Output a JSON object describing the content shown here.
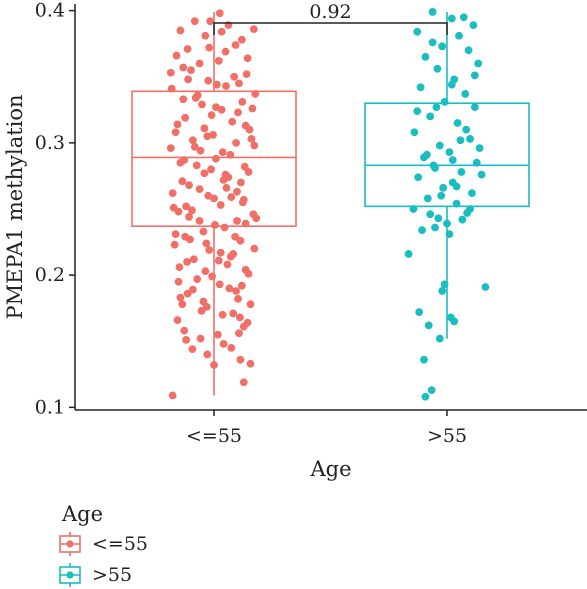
{
  "chart_data": {
    "type": "box",
    "xlabel": "Age",
    "ylabel": "PMEPA1 methylation",
    "ylim": [
      0.098,
      0.405
    ],
    "yticks": [
      0.1,
      0.2,
      0.3,
      0.4
    ],
    "yticklabels": [
      "0.1",
      "0.2",
      "0.3",
      "0.4"
    ],
    "categories": [
      "<=55",
      ">55"
    ],
    "comparison": {
      "label": "0.92",
      "groups": [
        "<=55",
        ">55"
      ]
    },
    "legend": {
      "title": "Age",
      "position": "bottom-left",
      "entries": [
        "<=55",
        ">55"
      ]
    },
    "series": [
      {
        "name": "<=55",
        "color": "#F07068",
        "box": {
          "q1": 0.237,
          "median": 0.289,
          "q3": 0.339,
          "whisker_low": 0.109,
          "whisker_high": 0.399
        },
        "points": [
          [
            -0.86,
            0.109
          ],
          [
            -0.7,
            0.385
          ],
          [
            0.12,
            0.398
          ],
          [
            0.83,
            0.386
          ],
          [
            -0.55,
            0.371
          ],
          [
            0.45,
            0.374
          ],
          [
            -0.3,
            0.36
          ],
          [
            0.68,
            0.352
          ],
          [
            -0.12,
            0.347
          ],
          [
            0.25,
            0.343
          ],
          [
            -0.64,
            0.333
          ],
          [
            0.59,
            0.331
          ],
          [
            -0.05,
            0.321
          ],
          [
            0.38,
            0.316
          ],
          [
            -0.8,
            0.308
          ],
          [
            0.78,
            0.303
          ],
          [
            -0.4,
            0.297
          ],
          [
            0.18,
            0.293
          ],
          [
            -0.7,
            0.285
          ],
          [
            0.64,
            0.282
          ],
          [
            -0.2,
            0.277
          ],
          [
            0.3,
            0.274
          ],
          [
            -0.52,
            0.268
          ],
          [
            0.48,
            0.263
          ],
          [
            0.0,
            0.258
          ],
          [
            -0.84,
            0.251
          ],
          [
            0.82,
            0.246
          ],
          [
            -0.3,
            0.241
          ],
          [
            0.22,
            0.236
          ],
          [
            -0.6,
            0.229
          ],
          [
            0.55,
            0.226
          ],
          [
            -0.1,
            0.219
          ],
          [
            0.35,
            0.214
          ],
          [
            -0.72,
            0.206
          ],
          [
            0.72,
            0.201
          ],
          [
            -0.35,
            0.197
          ],
          [
            0.12,
            0.193
          ],
          [
            -0.55,
            0.186
          ],
          [
            0.5,
            0.182
          ],
          [
            -0.15,
            0.176
          ],
          [
            0.4,
            0.171
          ],
          [
            -0.76,
            0.166
          ],
          [
            0.62,
            0.161
          ],
          [
            -0.28,
            0.152
          ],
          [
            0.2,
            0.148
          ],
          [
            -0.45,
            0.144
          ],
          [
            0.55,
            0.136
          ],
          [
            0.0,
            0.132
          ],
          [
            0.62,
            0.119
          ],
          [
            -0.4,
            0.392
          ],
          [
            0.3,
            0.389
          ],
          [
            -0.18,
            0.381
          ],
          [
            0.58,
            0.378
          ],
          [
            -0.78,
            0.366
          ],
          [
            0.1,
            0.362
          ],
          [
            -0.48,
            0.355
          ],
          [
            0.42,
            0.35
          ],
          [
            -0.88,
            0.341
          ],
          [
            0.86,
            0.337
          ],
          [
            -0.25,
            0.329
          ],
          [
            0.16,
            0.325
          ],
          [
            -0.6,
            0.319
          ],
          [
            0.66,
            0.313
          ],
          [
            -0.02,
            0.306
          ],
          [
            0.46,
            0.3
          ],
          [
            -0.9,
            0.296
          ],
          [
            0.04,
            0.288
          ],
          [
            -0.36,
            0.283
          ],
          [
            0.72,
            0.278
          ],
          [
            -0.66,
            0.271
          ],
          [
            0.26,
            0.266
          ],
          [
            -0.12,
            0.26
          ],
          [
            0.6,
            0.255
          ],
          [
            -0.46,
            0.249
          ],
          [
            0.88,
            0.243
          ],
          [
            -0.22,
            0.233
          ],
          [
            0.44,
            0.229
          ],
          [
            -0.82,
            0.223
          ],
          [
            0.14,
            0.217
          ],
          [
            -0.56,
            0.21
          ],
          [
            0.66,
            0.204
          ],
          [
            -0.04,
            0.199
          ],
          [
            0.32,
            0.19
          ],
          [
            -0.7,
            0.183
          ],
          [
            0.76,
            0.178
          ],
          [
            -0.26,
            0.173
          ],
          [
            0.54,
            0.168
          ],
          [
            -0.62,
            0.158
          ],
          [
            0.08,
            0.155
          ],
          [
            -0.14,
            0.14
          ],
          [
            0.24,
            0.369
          ],
          [
            -0.64,
            0.357
          ],
          [
            0.52,
            0.345
          ],
          [
            -0.34,
            0.336
          ],
          [
            0.04,
            0.327
          ],
          [
            -0.76,
            0.314
          ],
          [
            0.74,
            0.31
          ],
          [
            -0.44,
            0.302
          ],
          [
            0.34,
            0.291
          ],
          [
            -0.06,
            0.28
          ],
          [
            0.56,
            0.27
          ],
          [
            -0.86,
            0.262
          ],
          [
            0.14,
            0.253
          ],
          [
            -0.52,
            0.244
          ],
          [
            0.66,
            0.239
          ],
          [
            -0.16,
            0.224
          ],
          [
            0.84,
            0.22
          ],
          [
            -0.42,
            0.212
          ],
          [
            0.28,
            0.208
          ],
          [
            -0.74,
            0.195
          ],
          [
            0.46,
            0.188
          ],
          [
            -0.22,
            0.18
          ],
          [
            0.7,
            0.164
          ],
          [
            -0.58,
            0.151
          ],
          [
            0.36,
            0.145
          ],
          [
            0.16,
            0.384
          ],
          [
            -0.1,
            0.372
          ],
          [
            0.7,
            0.364
          ],
          [
            -0.9,
            0.353
          ],
          [
            0.06,
            0.344
          ],
          [
            -0.38,
            0.334
          ],
          [
            0.5,
            0.323
          ],
          [
            -0.2,
            0.311
          ],
          [
            0.84,
            0.298
          ],
          [
            -0.62,
            0.287
          ],
          [
            0.24,
            0.276
          ],
          [
            -0.3,
            0.265
          ],
          [
            0.62,
            0.257
          ],
          [
            -0.74,
            0.248
          ],
          [
            0.02,
            0.238
          ],
          [
            -0.5,
            0.227
          ],
          [
            0.4,
            0.216
          ],
          [
            -0.18,
            0.203
          ],
          [
            0.58,
            0.192
          ],
          [
            -0.66,
            0.178
          ],
          [
            0.18,
            0.17
          ],
          [
            0.76,
            0.133
          ],
          [
            -0.08,
            0.392
          ],
          [
            -0.54,
            0.348
          ],
          [
            0.8,
            0.326
          ],
          [
            -0.28,
            0.294
          ],
          [
            0.36,
            0.259
          ],
          [
            -0.8,
            0.231
          ],
          [
            0.1,
            0.211
          ],
          [
            -0.44,
            0.189
          ],
          [
            0.52,
            0.156
          ],
          [
            -0.14,
            0.305
          ],
          [
            0.2,
            0.272
          ],
          [
            -0.58,
            0.252
          ],
          [
            0.48,
            0.241
          ]
        ]
      },
      {
        "name": ">55",
        "color": "#1ABDC0",
        "box": {
          "q1": 0.252,
          "median": 0.283,
          "q3": 0.33,
          "whisker_low": 0.152,
          "whisker_high": 0.399
        },
        "points": [
          [
            -0.3,
            0.399
          ],
          [
            0.1,
            0.394
          ],
          [
            0.55,
            0.389
          ],
          [
            -0.62,
            0.384
          ],
          [
            0.25,
            0.381
          ],
          [
            -0.1,
            0.373
          ],
          [
            0.45,
            0.37
          ],
          [
            -0.45,
            0.365
          ],
          [
            0.65,
            0.36
          ],
          [
            -0.2,
            0.356
          ],
          [
            0.15,
            0.348
          ],
          [
            -0.55,
            0.342
          ],
          [
            0.38,
            0.337
          ],
          [
            -0.05,
            0.331
          ],
          [
            0.58,
            0.327
          ],
          [
            -0.35,
            0.32
          ],
          [
            0.22,
            0.315
          ],
          [
            -0.68,
            0.308
          ],
          [
            0.48,
            0.303
          ],
          [
            -0.15,
            0.298
          ],
          [
            0.05,
            0.293
          ],
          [
            -0.48,
            0.289
          ],
          [
            0.62,
            0.285
          ],
          [
            -0.25,
            0.281
          ],
          [
            0.3,
            0.278
          ],
          [
            -0.6,
            0.274
          ],
          [
            0.12,
            0.27
          ],
          [
            -0.08,
            0.266
          ],
          [
            0.52,
            0.262
          ],
          [
            -0.4,
            0.258
          ],
          [
            0.2,
            0.254
          ],
          [
            -0.7,
            0.25
          ],
          [
            0.42,
            0.247
          ],
          [
            -0.18,
            0.243
          ],
          [
            0.0,
            0.239
          ],
          [
            -0.52,
            0.234
          ],
          [
            0.05,
            0.231
          ],
          [
            -0.8,
            0.216
          ],
          [
            0.8,
            0.191
          ],
          [
            -0.1,
            0.188
          ],
          [
            0.15,
            0.165
          ],
          [
            -0.38,
            0.162
          ],
          [
            -0.15,
            0.152
          ],
          [
            -0.48,
            0.136
          ],
          [
            -0.32,
            0.113
          ],
          [
            -0.45,
            0.108
          ],
          [
            0.35,
            0.395
          ],
          [
            -0.3,
            0.376
          ],
          [
            0.58,
            0.351
          ],
          [
            0.1,
            0.344
          ],
          [
            -0.62,
            0.324
          ],
          [
            0.4,
            0.31
          ],
          [
            0.68,
            0.296
          ],
          [
            -0.42,
            0.291
          ],
          [
            0.12,
            0.287
          ],
          [
            -0.28,
            0.283
          ],
          [
            0.72,
            0.276
          ],
          [
            0.2,
            0.267
          ],
          [
            -0.12,
            0.26
          ],
          [
            0.48,
            0.25
          ],
          [
            -0.35,
            0.246
          ],
          [
            0.32,
            0.242
          ],
          [
            -0.25,
            0.236
          ],
          [
            -0.05,
            0.193
          ],
          [
            -0.58,
            0.172
          ],
          [
            0.08,
            0.168
          ],
          [
            -0.22,
            0.327
          ],
          [
            0.28,
            0.302
          ]
        ]
      }
    ]
  }
}
